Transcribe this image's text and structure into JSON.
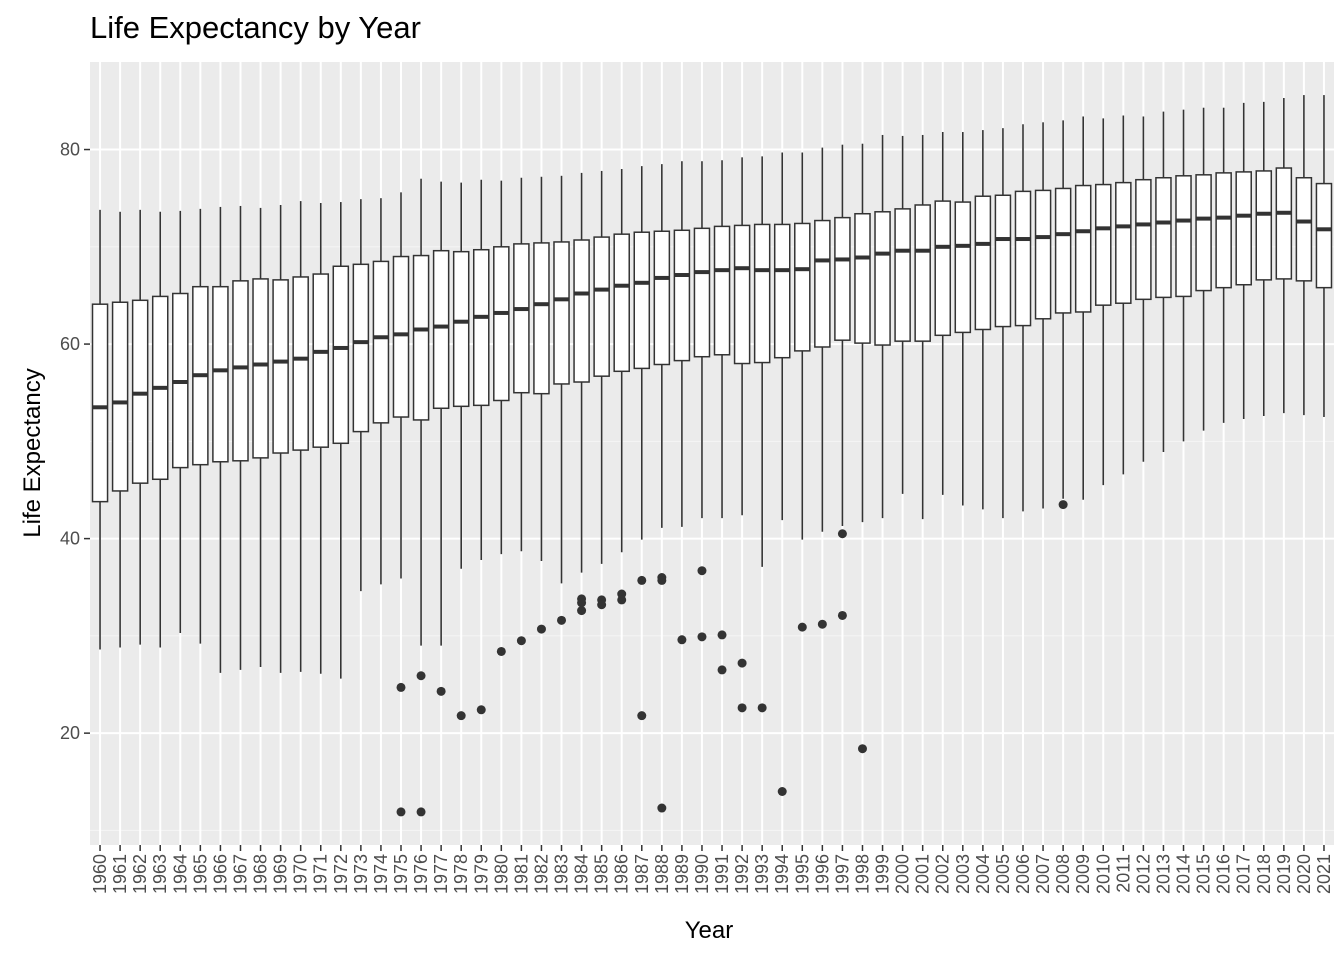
{
  "chart_data": {
    "type": "box",
    "title": "Life Expectancy by Year",
    "xlabel": "Year",
    "ylabel": "Life Expectancy",
    "ylim": [
      8.5,
      89.0
    ],
    "yticks": [
      20,
      40,
      60,
      80
    ],
    "grid": true,
    "legend": "none",
    "categories": [
      "1960",
      "1961",
      "1962",
      "1963",
      "1964",
      "1965",
      "1966",
      "1967",
      "1968",
      "1969",
      "1970",
      "1971",
      "1972",
      "1973",
      "1974",
      "1975",
      "1976",
      "1977",
      "1978",
      "1979",
      "1980",
      "1981",
      "1982",
      "1983",
      "1984",
      "1985",
      "1986",
      "1987",
      "1988",
      "1989",
      "1990",
      "1991",
      "1992",
      "1993",
      "1994",
      "1995",
      "1996",
      "1997",
      "1998",
      "1999",
      "2000",
      "2001",
      "2002",
      "2003",
      "2004",
      "2005",
      "2006",
      "2007",
      "2008",
      "2009",
      "2010",
      "2011",
      "2012",
      "2013",
      "2014",
      "2015",
      "2016",
      "2017",
      "2018",
      "2019",
      "2020",
      "2021"
    ],
    "boxes": [
      {
        "min": 28.6,
        "q1": 43.8,
        "median": 53.5,
        "q3": 64.1,
        "max": 73.8
      },
      {
        "min": 28.8,
        "q1": 44.9,
        "median": 54.0,
        "q3": 64.3,
        "max": 73.6
      },
      {
        "min": 29.1,
        "q1": 45.7,
        "median": 54.9,
        "q3": 64.5,
        "max": 73.8
      },
      {
        "min": 28.8,
        "q1": 46.1,
        "median": 55.5,
        "q3": 64.9,
        "max": 73.6
      },
      {
        "min": 30.3,
        "q1": 47.3,
        "median": 56.1,
        "q3": 65.2,
        "max": 73.7
      },
      {
        "min": 29.2,
        "q1": 47.6,
        "median": 56.8,
        "q3": 65.9,
        "max": 73.9
      },
      {
        "min": 26.2,
        "q1": 47.9,
        "median": 57.3,
        "q3": 65.9,
        "max": 74.1
      },
      {
        "min": 26.5,
        "q1": 48.0,
        "median": 57.6,
        "q3": 66.5,
        "max": 74.2
      },
      {
        "min": 26.8,
        "q1": 48.3,
        "median": 57.9,
        "q3": 66.7,
        "max": 74.0
      },
      {
        "min": 26.2,
        "q1": 48.8,
        "median": 58.2,
        "q3": 66.6,
        "max": 74.3
      },
      {
        "min": 26.3,
        "q1": 49.1,
        "median": 58.5,
        "q3": 66.9,
        "max": 74.7
      },
      {
        "min": 26.1,
        "q1": 49.4,
        "median": 59.2,
        "q3": 67.2,
        "max": 74.5
      },
      {
        "min": 25.6,
        "q1": 49.8,
        "median": 59.6,
        "q3": 68.0,
        "max": 74.6
      },
      {
        "min": 34.6,
        "q1": 51.0,
        "median": 60.2,
        "q3": 68.2,
        "max": 74.9
      },
      {
        "min": 35.3,
        "q1": 51.9,
        "median": 60.7,
        "q3": 68.5,
        "max": 75.0
      },
      {
        "min": 35.9,
        "q1": 52.5,
        "median": 61.0,
        "q3": 69.0,
        "max": 75.6
      },
      {
        "min": 29.0,
        "q1": 52.2,
        "median": 61.5,
        "q3": 69.1,
        "max": 77.0
      },
      {
        "min": 29.0,
        "q1": 53.4,
        "median": 61.8,
        "q3": 69.6,
        "max": 76.7
      },
      {
        "min": 36.9,
        "q1": 53.6,
        "median": 62.3,
        "q3": 69.5,
        "max": 76.6
      },
      {
        "min": 37.8,
        "q1": 53.7,
        "median": 62.8,
        "q3": 69.7,
        "max": 76.9
      },
      {
        "min": 38.4,
        "q1": 54.2,
        "median": 63.2,
        "q3": 70.0,
        "max": 76.8
      },
      {
        "min": 38.7,
        "q1": 55.0,
        "median": 63.6,
        "q3": 70.3,
        "max": 77.1
      },
      {
        "min": 37.7,
        "q1": 54.9,
        "median": 64.1,
        "q3": 70.4,
        "max": 77.2
      },
      {
        "min": 35.4,
        "q1": 55.9,
        "median": 64.6,
        "q3": 70.5,
        "max": 77.3
      },
      {
        "min": 36.5,
        "q1": 56.1,
        "median": 65.2,
        "q3": 70.7,
        "max": 77.6
      },
      {
        "min": 37.4,
        "q1": 56.7,
        "median": 65.6,
        "q3": 71.0,
        "max": 77.8
      },
      {
        "min": 38.6,
        "q1": 57.2,
        "median": 66.0,
        "q3": 71.3,
        "max": 78.0
      },
      {
        "min": 39.9,
        "q1": 57.5,
        "median": 66.3,
        "q3": 71.5,
        "max": 78.3
      },
      {
        "min": 41.1,
        "q1": 57.9,
        "median": 66.8,
        "q3": 71.6,
        "max": 78.5
      },
      {
        "min": 41.2,
        "q1": 58.3,
        "median": 67.1,
        "q3": 71.7,
        "max": 78.8
      },
      {
        "min": 42.1,
        "q1": 58.7,
        "median": 67.4,
        "q3": 71.9,
        "max": 78.8
      },
      {
        "min": 42.1,
        "q1": 58.9,
        "median": 67.6,
        "q3": 72.1,
        "max": 78.9
      },
      {
        "min": 42.4,
        "q1": 58.0,
        "median": 67.8,
        "q3": 72.2,
        "max": 79.2
      },
      {
        "min": 37.1,
        "q1": 58.1,
        "median": 67.6,
        "q3": 72.3,
        "max": 79.3
      },
      {
        "min": 41.9,
        "q1": 58.6,
        "median": 67.6,
        "q3": 72.3,
        "max": 79.7
      },
      {
        "min": 39.9,
        "q1": 59.3,
        "median": 67.7,
        "q3": 72.4,
        "max": 79.7
      },
      {
        "min": 40.7,
        "q1": 59.7,
        "median": 68.6,
        "q3": 72.7,
        "max": 80.2
      },
      {
        "min": 41.3,
        "q1": 60.4,
        "median": 68.7,
        "q3": 73.0,
        "max": 80.5
      },
      {
        "min": 41.7,
        "q1": 60.1,
        "median": 68.9,
        "q3": 73.4,
        "max": 80.6
      },
      {
        "min": 42.1,
        "q1": 59.9,
        "median": 69.3,
        "q3": 73.6,
        "max": 81.5
      },
      {
        "min": 44.6,
        "q1": 60.3,
        "median": 69.6,
        "q3": 73.9,
        "max": 81.4
      },
      {
        "min": 42.0,
        "q1": 60.3,
        "median": 69.6,
        "q3": 74.3,
        "max": 81.5
      },
      {
        "min": 44.5,
        "q1": 60.9,
        "median": 70.0,
        "q3": 74.7,
        "max": 81.8
      },
      {
        "min": 43.4,
        "q1": 61.2,
        "median": 70.1,
        "q3": 74.6,
        "max": 81.8
      },
      {
        "min": 43.0,
        "q1": 61.5,
        "median": 70.3,
        "q3": 75.2,
        "max": 82.0
      },
      {
        "min": 42.1,
        "q1": 61.8,
        "median": 70.8,
        "q3": 75.3,
        "max": 82.2
      },
      {
        "min": 42.8,
        "q1": 61.9,
        "median": 70.8,
        "q3": 75.7,
        "max": 82.6
      },
      {
        "min": 43.1,
        "q1": 62.6,
        "median": 71.0,
        "q3": 75.8,
        "max": 82.8
      },
      {
        "min": 44.1,
        "q1": 63.2,
        "median": 71.3,
        "q3": 76.0,
        "max": 83.0
      },
      {
        "min": 44.0,
        "q1": 63.3,
        "median": 71.6,
        "q3": 76.3,
        "max": 83.4
      },
      {
        "min": 45.5,
        "q1": 64.0,
        "median": 71.9,
        "q3": 76.4,
        "max": 83.2
      },
      {
        "min": 46.6,
        "q1": 64.2,
        "median": 72.1,
        "q3": 76.6,
        "max": 83.5
      },
      {
        "min": 47.9,
        "q1": 64.6,
        "median": 72.3,
        "q3": 76.9,
        "max": 83.4
      },
      {
        "min": 48.9,
        "q1": 64.8,
        "median": 72.5,
        "q3": 77.1,
        "max": 83.9
      },
      {
        "min": 50.0,
        "q1": 64.9,
        "median": 72.7,
        "q3": 77.3,
        "max": 84.1
      },
      {
        "min": 51.1,
        "q1": 65.5,
        "median": 72.9,
        "q3": 77.4,
        "max": 84.3
      },
      {
        "min": 51.9,
        "q1": 65.8,
        "median": 73.0,
        "q3": 77.6,
        "max": 84.3
      },
      {
        "min": 52.3,
        "q1": 66.1,
        "median": 73.2,
        "q3": 77.7,
        "max": 84.8
      },
      {
        "min": 52.6,
        "q1": 66.6,
        "median": 73.4,
        "q3": 77.8,
        "max": 84.9
      },
      {
        "min": 52.9,
        "q1": 66.7,
        "median": 73.5,
        "q3": 78.1,
        "max": 85.3
      },
      {
        "min": 52.7,
        "q1": 66.5,
        "median": 72.6,
        "q3": 77.1,
        "max": 85.6
      },
      {
        "min": 52.5,
        "q1": 65.8,
        "median": 71.8,
        "q3": 76.5,
        "max": 85.6
      }
    ],
    "outliers": [
      {
        "x": "1975",
        "y": 24.7
      },
      {
        "x": "1975",
        "y": 11.9
      },
      {
        "x": "1976",
        "y": 25.9
      },
      {
        "x": "1976",
        "y": 11.9
      },
      {
        "x": "1977",
        "y": 24.3
      },
      {
        "x": "1978",
        "y": 21.8
      },
      {
        "x": "1979",
        "y": 22.4
      },
      {
        "x": "1980",
        "y": 28.4
      },
      {
        "x": "1981",
        "y": 29.5
      },
      {
        "x": "1982",
        "y": 30.7
      },
      {
        "x": "1983",
        "y": 31.6
      },
      {
        "x": "1984",
        "y": 33.8
      },
      {
        "x": "1984",
        "y": 33.4
      },
      {
        "x": "1984",
        "y": 32.6
      },
      {
        "x": "1985",
        "y": 33.7
      },
      {
        "x": "1985",
        "y": 33.2
      },
      {
        "x": "1986",
        "y": 34.3
      },
      {
        "x": "1986",
        "y": 33.7
      },
      {
        "x": "1987",
        "y": 35.7
      },
      {
        "x": "1987",
        "y": 21.8
      },
      {
        "x": "1988",
        "y": 36.0
      },
      {
        "x": "1988",
        "y": 35.7
      },
      {
        "x": "1988",
        "y": 12.3
      },
      {
        "x": "1989",
        "y": 29.6
      },
      {
        "x": "1990",
        "y": 36.7
      },
      {
        "x": "1990",
        "y": 29.9
      },
      {
        "x": "1991",
        "y": 30.1
      },
      {
        "x": "1991",
        "y": 26.5
      },
      {
        "x": "1992",
        "y": 27.2
      },
      {
        "x": "1992",
        "y": 22.6
      },
      {
        "x": "1993",
        "y": 22.6
      },
      {
        "x": "1994",
        "y": 14.0
      },
      {
        "x": "1995",
        "y": 30.9
      },
      {
        "x": "1996",
        "y": 31.2
      },
      {
        "x": "1997",
        "y": 40.5
      },
      {
        "x": "1997",
        "y": 32.1
      },
      {
        "x": "1998",
        "y": 18.4
      },
      {
        "x": "2008",
        "y": 43.5
      }
    ]
  }
}
